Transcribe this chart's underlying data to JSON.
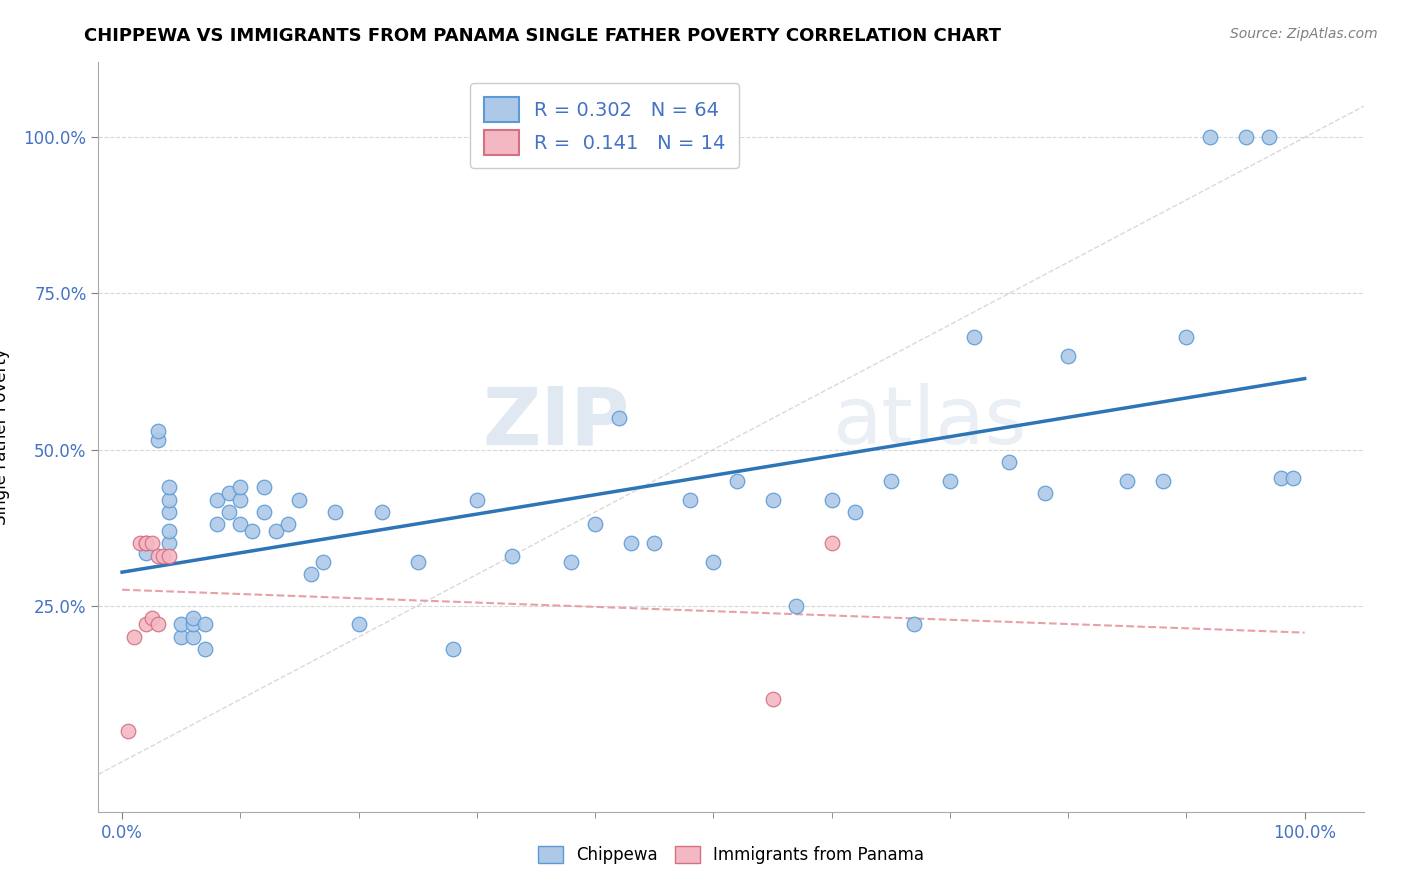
{
  "title": "CHIPPEWA VS IMMIGRANTS FROM PANAMA SINGLE FATHER POVERTY CORRELATION CHART",
  "source_text": "Source: ZipAtlas.com",
  "ylabel": "Single Father Poverty",
  "xlabel": "",
  "xlim": [
    -0.02,
    1.05
  ],
  "ylim": [
    -0.08,
    1.12
  ],
  "xtick_positions": [
    0.0,
    1.0
  ],
  "xtick_labels": [
    "0.0%",
    "100.0%"
  ],
  "ytick_positions": [
    0.25,
    0.5,
    0.75,
    1.0
  ],
  "ytick_labels": [
    "25.0%",
    "50.0%",
    "75.0%",
    "100.0%"
  ],
  "watermark_zip": "ZIP",
  "watermark_atlas": "atlas",
  "legend_line1": "R = 0.302   N = 64",
  "legend_line2": "R =  0.141   N = 14",
  "chippewa_color": "#aec9e8",
  "chippewa_edge": "#5b9bd5",
  "panama_color": "#f4b8c4",
  "panama_edge": "#d47080",
  "trend_color_chippewa": "#2e75b6",
  "trend_color_panama": "#e8a0a8",
  "ref_line_color": "#c0c0c0",
  "background_color": "#ffffff",
  "chippewa_x": [
    0.02,
    0.03,
    0.03,
    0.04,
    0.04,
    0.04,
    0.04,
    0.04,
    0.05,
    0.05,
    0.06,
    0.06,
    0.06,
    0.07,
    0.07,
    0.08,
    0.08,
    0.09,
    0.09,
    0.1,
    0.1,
    0.1,
    0.11,
    0.12,
    0.12,
    0.13,
    0.14,
    0.15,
    0.16,
    0.17,
    0.18,
    0.2,
    0.22,
    0.25,
    0.28,
    0.3,
    0.33,
    0.38,
    0.4,
    0.42,
    0.43,
    0.45,
    0.48,
    0.5,
    0.52,
    0.55,
    0.57,
    0.6,
    0.62,
    0.65,
    0.67,
    0.7,
    0.72,
    0.75,
    0.78,
    0.8,
    0.85,
    0.88,
    0.9,
    0.92,
    0.95,
    0.97,
    0.98,
    0.99
  ],
  "chippewa_y": [
    0.335,
    0.515,
    0.53,
    0.35,
    0.37,
    0.4,
    0.42,
    0.44,
    0.2,
    0.22,
    0.2,
    0.22,
    0.23,
    0.18,
    0.22,
    0.38,
    0.42,
    0.4,
    0.43,
    0.38,
    0.42,
    0.44,
    0.37,
    0.4,
    0.44,
    0.37,
    0.38,
    0.42,
    0.3,
    0.32,
    0.4,
    0.22,
    0.4,
    0.32,
    0.18,
    0.42,
    0.33,
    0.32,
    0.38,
    0.55,
    0.35,
    0.35,
    0.42,
    0.32,
    0.45,
    0.42,
    0.25,
    0.42,
    0.4,
    0.45,
    0.22,
    0.45,
    0.68,
    0.48,
    0.43,
    0.65,
    0.45,
    0.45,
    0.68,
    1.0,
    1.0,
    1.0,
    0.455,
    0.455
  ],
  "panama_x": [
    0.005,
    0.01,
    0.015,
    0.02,
    0.02,
    0.02,
    0.025,
    0.025,
    0.03,
    0.03,
    0.035,
    0.04,
    0.55,
    0.6
  ],
  "panama_y": [
    0.05,
    0.2,
    0.35,
    0.22,
    0.35,
    0.35,
    0.23,
    0.35,
    0.22,
    0.33,
    0.33,
    0.33,
    0.1,
    0.35
  ]
}
